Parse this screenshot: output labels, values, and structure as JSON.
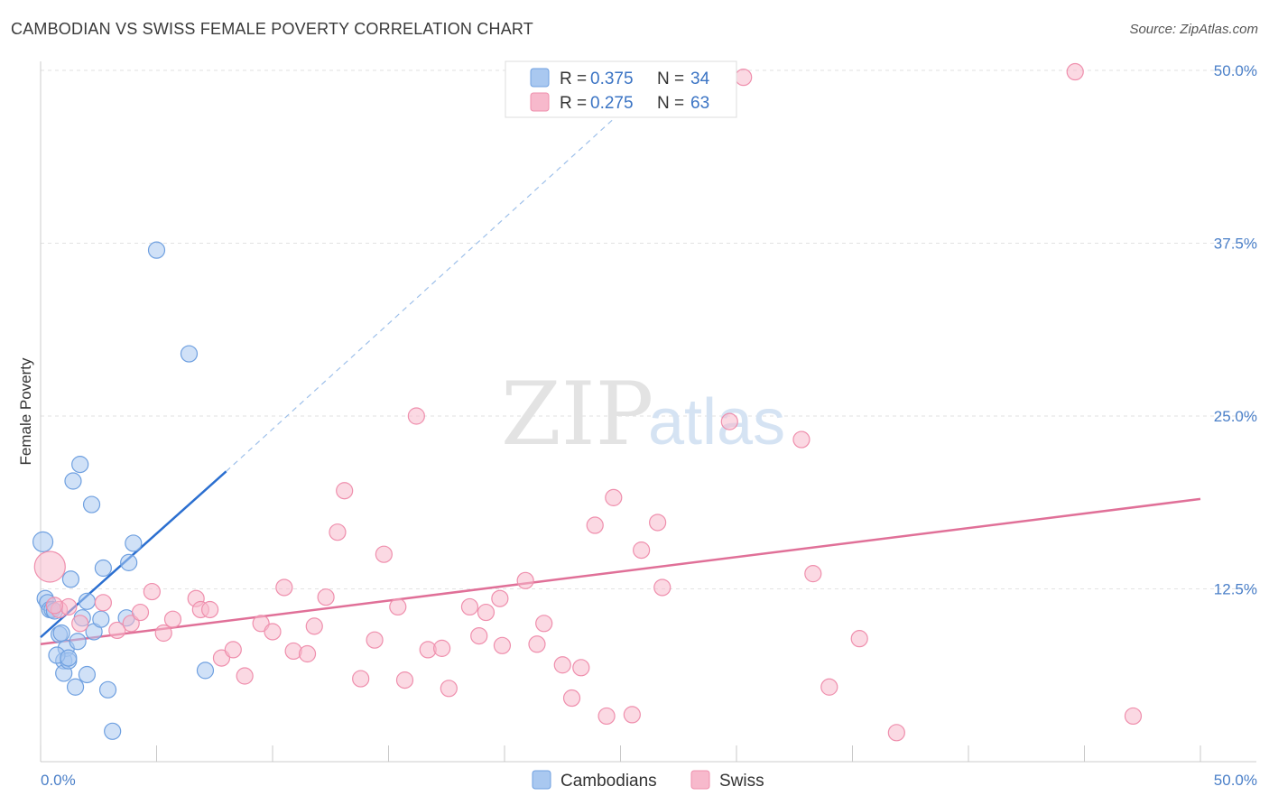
{
  "header": {
    "title": "CAMBODIAN VS SWISS FEMALE POVERTY CORRELATION CHART",
    "source": "Source: ZipAtlas.com"
  },
  "watermark": {
    "zip": "ZIP",
    "atlas": "atlas"
  },
  "legend_top": {
    "rows": [
      {
        "r_label": "R = ",
        "r_value": "0.375",
        "n_label": "N = ",
        "n_value": "34",
        "color": "#a9c8f0"
      },
      {
        "r_label": "R = ",
        "r_value": "0.275",
        "n_label": "N = ",
        "n_value": "63",
        "color": "#f7b9cc"
      }
    ]
  },
  "legend_bottom": [
    {
      "label": "Cambodians",
      "color": "#a9c8f0"
    },
    {
      "label": "Swiss",
      "color": "#f7b9cc"
    }
  ],
  "chart_data": {
    "type": "scatter",
    "title": "CAMBODIAN VS SWISS FEMALE POVERTY CORRELATION CHART",
    "xlabel": "",
    "ylabel": "Female Poverty",
    "xlim": [
      0,
      50
    ],
    "ylim": [
      0,
      50
    ],
    "x_tick_labels": [
      "0.0%",
      "50.0%"
    ],
    "y_ticks": [
      12.5,
      25.0,
      37.5,
      50.0
    ],
    "y_tick_labels": [
      "12.5%",
      "25.0%",
      "37.5%",
      "50.0%"
    ],
    "grid": true,
    "legend_placement": "top-center",
    "series": [
      {
        "name": "Cambodians",
        "color": "#6fa0e0",
        "fill": "#a9c8f0",
        "trend": {
          "x0": 0.0,
          "y0": 9.0,
          "x1": 8.0,
          "y1": 21.0,
          "dash_to_x": 27.0,
          "dash_to_y": 50.0,
          "color": "#2b6fd0"
        },
        "points": [
          [
            0.1,
            15.9
          ],
          [
            0.2,
            11.8
          ],
          [
            0.3,
            11.5
          ],
          [
            0.4,
            11.0
          ],
          [
            0.5,
            11.0
          ],
          [
            0.8,
            9.2
          ],
          [
            0.9,
            9.3
          ],
          [
            1.0,
            7.3
          ],
          [
            1.0,
            6.4
          ],
          [
            1.1,
            8.2
          ],
          [
            1.2,
            7.3
          ],
          [
            1.3,
            13.2
          ],
          [
            1.4,
            20.3
          ],
          [
            1.5,
            5.4
          ],
          [
            1.6,
            8.7
          ],
          [
            1.7,
            21.5
          ],
          [
            1.8,
            10.4
          ],
          [
            2.0,
            11.6
          ],
          [
            2.0,
            6.3
          ],
          [
            2.2,
            18.6
          ],
          [
            2.3,
            9.4
          ],
          [
            2.6,
            10.3
          ],
          [
            2.7,
            14.0
          ],
          [
            2.9,
            5.2
          ],
          [
            3.1,
            2.2
          ],
          [
            3.8,
            14.4
          ],
          [
            3.7,
            10.4
          ],
          [
            4.0,
            15.8
          ],
          [
            5.0,
            37.0
          ],
          [
            6.4,
            29.5
          ],
          [
            7.1,
            6.6
          ],
          [
            0.6,
            10.9
          ],
          [
            0.7,
            7.7
          ],
          [
            1.2,
            7.5
          ]
        ]
      },
      {
        "name": "Swiss",
        "color": "#ef8fad",
        "fill": "#f7b9cc",
        "trend": {
          "x0": 0.0,
          "y0": 8.5,
          "x1": 50.0,
          "y1": 19.0,
          "color": "#e07098"
        },
        "points": [
          [
            0.4,
            14.1
          ],
          [
            0.8,
            11.0
          ],
          [
            1.2,
            11.2
          ],
          [
            1.7,
            10.0
          ],
          [
            2.7,
            11.5
          ],
          [
            3.3,
            9.5
          ],
          [
            3.9,
            10.0
          ],
          [
            4.3,
            10.8
          ],
          [
            4.8,
            12.3
          ],
          [
            5.3,
            9.3
          ],
          [
            5.7,
            10.3
          ],
          [
            6.7,
            11.8
          ],
          [
            6.9,
            11.0
          ],
          [
            7.3,
            11.0
          ],
          [
            7.8,
            7.5
          ],
          [
            8.3,
            8.1
          ],
          [
            8.8,
            6.2
          ],
          [
            9.5,
            10.0
          ],
          [
            10.0,
            9.4
          ],
          [
            10.5,
            12.6
          ],
          [
            10.9,
            8.0
          ],
          [
            11.5,
            7.8
          ],
          [
            11.8,
            9.8
          ],
          [
            12.3,
            11.9
          ],
          [
            12.8,
            16.6
          ],
          [
            13.1,
            19.6
          ],
          [
            13.8,
            6.0
          ],
          [
            14.4,
            8.8
          ],
          [
            14.8,
            15.0
          ],
          [
            15.4,
            11.2
          ],
          [
            15.7,
            5.9
          ],
          [
            16.2,
            25.0
          ],
          [
            16.7,
            8.1
          ],
          [
            17.3,
            8.2
          ],
          [
            17.6,
            5.3
          ],
          [
            18.5,
            11.2
          ],
          [
            18.9,
            9.1
          ],
          [
            19.2,
            10.8
          ],
          [
            19.8,
            11.8
          ],
          [
            19.9,
            8.4
          ],
          [
            20.9,
            13.1
          ],
          [
            21.4,
            8.5
          ],
          [
            21.7,
            10.0
          ],
          [
            22.5,
            7.0
          ],
          [
            22.9,
            4.6
          ],
          [
            23.3,
            6.8
          ],
          [
            23.9,
            17.1
          ],
          [
            24.4,
            3.3
          ],
          [
            24.7,
            19.1
          ],
          [
            25.5,
            3.4
          ],
          [
            25.9,
            15.3
          ],
          [
            26.6,
            17.3
          ],
          [
            26.8,
            12.6
          ],
          [
            29.7,
            24.6
          ],
          [
            30.3,
            49.5
          ],
          [
            32.8,
            23.3
          ],
          [
            33.3,
            13.6
          ],
          [
            34.0,
            5.4
          ],
          [
            35.3,
            8.9
          ],
          [
            36.9,
            2.1
          ],
          [
            44.6,
            49.9
          ],
          [
            47.1,
            3.3
          ],
          [
            0.6,
            11.3
          ]
        ]
      }
    ]
  }
}
